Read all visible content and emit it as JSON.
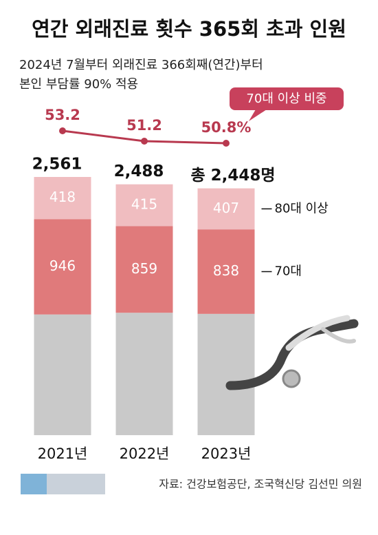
{
  "chart_data": {
    "type": "bar",
    "title": "연간 외래진료 횟수 365회 초과 인원",
    "subtitle": [
      "2024년 7월부터 외래진료 366회째(연간)부터",
      "본인 부담률 90% 적용"
    ],
    "annotation": "70대 이상 비중",
    "source": "자료: 건강보험공단, 조국혁신당 김선민 의원",
    "categories": [
      "2021년",
      "2022년",
      "2023년"
    ],
    "series": [
      {
        "color": "#c9c9c9",
        "values": [
          1197,
          1214,
          1203
        ]
      },
      {
        "name": "70대",
        "color": "#e07a7b",
        "values": [
          946,
          859,
          838
        ]
      },
      {
        "name": "80대 이상",
        "color": "#f0bdc0",
        "values": [
          418,
          415,
          407
        ]
      }
    ],
    "totals": {
      "values": [
        2561,
        2488,
        2448
      ],
      "value_labels": [
        "2,561",
        "2,488",
        "총 2,448명"
      ]
    },
    "line": {
      "color": "#b8394f",
      "values": [
        53.2,
        51.2,
        50.8
      ],
      "value_labels": [
        "53.2",
        "51.2",
        "50.8%"
      ]
    }
  }
}
